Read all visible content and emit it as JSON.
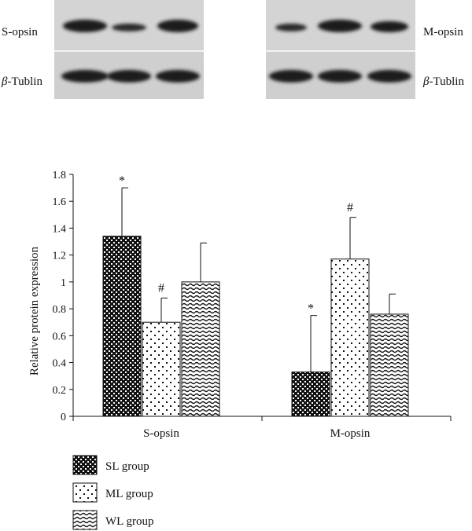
{
  "blots": [
    {
      "label_top": "S-opsin",
      "label_bottom_italic": "β",
      "label_bottom_rest": "-Tublin"
    },
    {
      "label_top": "M-opsin",
      "label_bottom_italic": "β",
      "label_bottom_rest": "-Tublin"
    }
  ],
  "chart_data": {
    "type": "bar",
    "categories": [
      "S-opsin",
      "M-opsin"
    ],
    "ylabel": "Relative protein expression",
    "xlabel": "",
    "title": "",
    "ylim": [
      0,
      1.8
    ],
    "yticks": [
      0,
      0.2,
      0.4,
      0.6,
      0.8,
      1,
      1.2,
      1.4,
      1.6,
      1.8
    ],
    "ytick_labels": [
      "0",
      "0.2",
      "0.4",
      "0.6",
      "0.8",
      "1",
      "1.2",
      "1.4",
      "1.6",
      "1.8"
    ],
    "series": [
      {
        "name": "SL group",
        "pattern": "checker",
        "values": [
          1.34,
          0.33
        ],
        "errors": [
          0.36,
          0.42
        ],
        "annotations": [
          "*",
          "*"
        ]
      },
      {
        "name": "ML group",
        "pattern": "dots",
        "values": [
          0.7,
          1.17
        ],
        "errors": [
          0.18,
          0.31
        ],
        "annotations": [
          "#",
          "#"
        ]
      },
      {
        "name": "WL group",
        "pattern": "waves",
        "values": [
          1.0,
          0.76
        ],
        "errors": [
          0.29,
          0.15
        ],
        "annotations": [
          "",
          ""
        ]
      }
    ],
    "legend_position": "bottom-left",
    "grid": false
  }
}
